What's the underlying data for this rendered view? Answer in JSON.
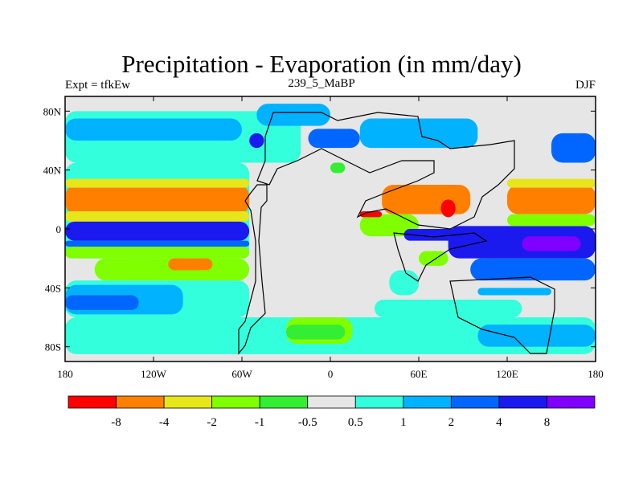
{
  "chart_data": {
    "type": "heatmap",
    "title": "Precipitation - Evaporation (in mm/day)",
    "left_string": "Expt = tfkEw",
    "center_string": "239_5_MaBP",
    "right_string": "DJF",
    "xlabel": "",
    "ylabel": "",
    "xlim": [
      -180,
      180
    ],
    "ylim": [
      -90,
      90
    ],
    "x_ticks": [
      {
        "value": -180,
        "label": "180"
      },
      {
        "value": -120,
        "label": "120W"
      },
      {
        "value": -60,
        "label": "60W"
      },
      {
        "value": 0,
        "label": "0"
      },
      {
        "value": 60,
        "label": "60E"
      },
      {
        "value": 120,
        "label": "120E"
      },
      {
        "value": 180,
        "label": "180"
      }
    ],
    "y_ticks": [
      {
        "value": 80,
        "label": "80N"
      },
      {
        "value": 40,
        "label": "40N"
      },
      {
        "value": 0,
        "label": "0"
      },
      {
        "value": -40,
        "label": "40S"
      },
      {
        "value": -80,
        "label": "80S"
      }
    ],
    "colorbar": {
      "colors": [
        "#ff0000",
        "#ff8000",
        "#e6e61a",
        "#80ff00",
        "#33ee33",
        "#e6e6e6",
        "#33ffdd",
        "#00b2ff",
        "#0066ff",
        "#1a1aee",
        "#7f00ff"
      ],
      "labels": [
        "-8",
        "-4",
        "-2",
        "-1",
        "-0.5",
        "0.5",
        "1",
        "2",
        "4",
        "8"
      ]
    },
    "fields": [
      {
        "class": 5,
        "lon": [
          -180,
          180
        ],
        "lat": [
          -90,
          90
        ]
      },
      {
        "class": 6,
        "lon": [
          -180,
          -20
        ],
        "lat": [
          45,
          80
        ]
      },
      {
        "class": 7,
        "lon": [
          -180,
          -60
        ],
        "lat": [
          60,
          75
        ]
      },
      {
        "class": 6,
        "lon": [
          -180,
          -55
        ],
        "lat": [
          -20,
          45
        ]
      },
      {
        "class": 1,
        "lon": [
          -180,
          -55
        ],
        "lat": [
          10,
          30
        ]
      },
      {
        "class": 2,
        "lon": [
          -180,
          -55
        ],
        "lat": [
          5,
          12
        ]
      },
      {
        "class": 2,
        "lon": [
          -180,
          -55
        ],
        "lat": [
          28,
          34
        ]
      },
      {
        "class": 9,
        "lon": [
          -180,
          -55
        ],
        "lat": [
          -8,
          5
        ]
      },
      {
        "class": 8,
        "lon": [
          -180,
          -55
        ],
        "lat": [
          -12,
          -8
        ]
      },
      {
        "class": 3,
        "lon": [
          -180,
          -55
        ],
        "lat": [
          -20,
          -12
        ]
      },
      {
        "class": 3,
        "lon": [
          -160,
          -55
        ],
        "lat": [
          -35,
          -20
        ]
      },
      {
        "class": 1,
        "lon": [
          -110,
          -80
        ],
        "lat": [
          -28,
          -20
        ]
      },
      {
        "class": 6,
        "lon": [
          -180,
          -55
        ],
        "lat": [
          -60,
          -35
        ]
      },
      {
        "class": 7,
        "lon": [
          -180,
          -100
        ],
        "lat": [
          -58,
          -38
        ]
      },
      {
        "class": 8,
        "lon": [
          -180,
          -130
        ],
        "lat": [
          -55,
          -45
        ]
      },
      {
        "class": 8,
        "lon": [
          -130,
          -90
        ],
        "lat": [
          -80,
          -65
        ]
      },
      {
        "class": 6,
        "lon": [
          -180,
          180
        ],
        "lat": [
          -85,
          -60
        ]
      },
      {
        "class": 3,
        "lon": [
          -30,
          15
        ],
        "lat": [
          -78,
          -60
        ]
      },
      {
        "class": 4,
        "lon": [
          -30,
          10
        ],
        "lat": [
          -75,
          -65
        ]
      },
      {
        "class": 7,
        "lon": [
          -50,
          0
        ],
        "lat": [
          70,
          85
        ]
      },
      {
        "class": 8,
        "lon": [
          -15,
          20
        ],
        "lat": [
          55,
          68
        ]
      },
      {
        "class": 7,
        "lon": [
          20,
          100
        ],
        "lat": [
          55,
          75
        ]
      },
      {
        "class": 9,
        "lon": [
          -55,
          -45
        ],
        "lat": [
          55,
          65
        ]
      },
      {
        "class": 4,
        "lon": [
          0,
          10
        ],
        "lat": [
          38,
          45
        ]
      },
      {
        "class": 3,
        "lon": [
          20,
          60
        ],
        "lat": [
          -5,
          10
        ]
      },
      {
        "class": 1,
        "lon": [
          35,
          95
        ],
        "lat": [
          10,
          30
        ]
      },
      {
        "class": 0,
        "lon": [
          75,
          85
        ],
        "lat": [
          8,
          20
        ]
      },
      {
        "class": 0,
        "lon": [
          20,
          35
        ],
        "lat": [
          8,
          12
        ]
      },
      {
        "class": 9,
        "lon": [
          50,
          110
        ],
        "lat": [
          -8,
          0
        ]
      },
      {
        "class": 3,
        "lon": [
          60,
          80
        ],
        "lat": [
          -25,
          -15
        ]
      },
      {
        "class": 6,
        "lon": [
          40,
          60
        ],
        "lat": [
          -45,
          -28
        ]
      },
      {
        "class": 7,
        "lon": [
          100,
          150
        ],
        "lat": [
          -45,
          -40
        ]
      },
      {
        "class": 1,
        "lon": [
          120,
          180
        ],
        "lat": [
          10,
          30
        ]
      },
      {
        "class": 2,
        "lon": [
          120,
          180
        ],
        "lat": [
          28,
          34
        ]
      },
      {
        "class": 9,
        "lon": [
          80,
          180
        ],
        "lat": [
          -20,
          2
        ]
      },
      {
        "class": 10,
        "lon": [
          130,
          170
        ],
        "lat": [
          -15,
          -5
        ]
      },
      {
        "class": 8,
        "lon": [
          95,
          180
        ],
        "lat": [
          -35,
          -20
        ]
      },
      {
        "class": 3,
        "lon": [
          120,
          180
        ],
        "lat": [
          2,
          10
        ]
      },
      {
        "class": 8,
        "lon": [
          150,
          180
        ],
        "lat": [
          45,
          65
        ]
      },
      {
        "class": 6,
        "lon": [
          30,
          130
        ],
        "lat": [
          -60,
          -48
        ]
      },
      {
        "class": 7,
        "lon": [
          100,
          180
        ],
        "lat": [
          -80,
          -65
        ]
      }
    ]
  }
}
